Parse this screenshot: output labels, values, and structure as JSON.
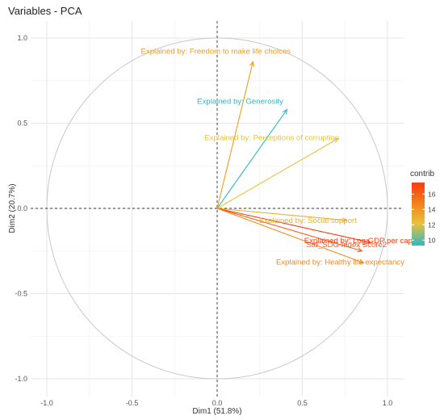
{
  "chart_data": {
    "type": "scatter",
    "subtype": "pca-variable-correlation-circle",
    "title": "Variables - PCA",
    "xlabel": "Dim1 (51.8%)",
    "ylabel": "Dim2 (20.7%)",
    "xlim": [
      -1.05,
      1.05
    ],
    "ylim": [
      -1.05,
      1.05
    ],
    "x_ticks": [
      "-1.0",
      "-0.5",
      "0.0",
      "0.5",
      "1.0"
    ],
    "y_ticks": [
      "-1.0",
      "-0.5",
      "0.0",
      "0.5",
      "1.0"
    ],
    "x_tick_values": [
      -1.0,
      -0.5,
      0.0,
      0.5,
      1.0
    ],
    "y_tick_values": [
      -1.0,
      -0.5,
      0.0,
      0.5,
      1.0
    ],
    "grid": true,
    "unit_circle": true,
    "legend": {
      "title": "contrib",
      "placement": "right",
      "range": [
        9.3,
        17.5
      ],
      "ticks": [
        10,
        12,
        14,
        16
      ],
      "gradient_colors": [
        "#2fb8c4",
        "#e8c23a",
        "#f57a18",
        "#fb3b10"
      ]
    },
    "variables": [
      {
        "label": "Explained by: Freedom to make life choices",
        "x": 0.21,
        "y": 0.86,
        "contrib": 13.2,
        "color": "#eb9d22"
      },
      {
        "label": "Explained by: Generosity",
        "x": 0.41,
        "y": 0.58,
        "contrib": 10.0,
        "color": "#2fb8c4"
      },
      {
        "label": "Explained by: Perceptions of corruption",
        "x": 0.71,
        "y": 0.41,
        "contrib": 12.7,
        "color": "#e8c23a"
      },
      {
        "label": "Explained by: Social support",
        "x": 0.76,
        "y": -0.07,
        "contrib": 13.0,
        "color": "#e8b02e"
      },
      {
        "label": "Explained by: Log GDP per capita",
        "x": 0.9,
        "y": -0.2,
        "contrib": 17.2,
        "color": "#fb3b10"
      },
      {
        "label": "Std_SDG Index Score2",
        "x": 0.85,
        "y": -0.25,
        "contrib": 16.2,
        "color": "#f65c17"
      },
      {
        "label": "Explained by: Healthy life expectancy",
        "x": 0.86,
        "y": -0.32,
        "contrib": 15.0,
        "color": "#f38a1a"
      }
    ]
  }
}
